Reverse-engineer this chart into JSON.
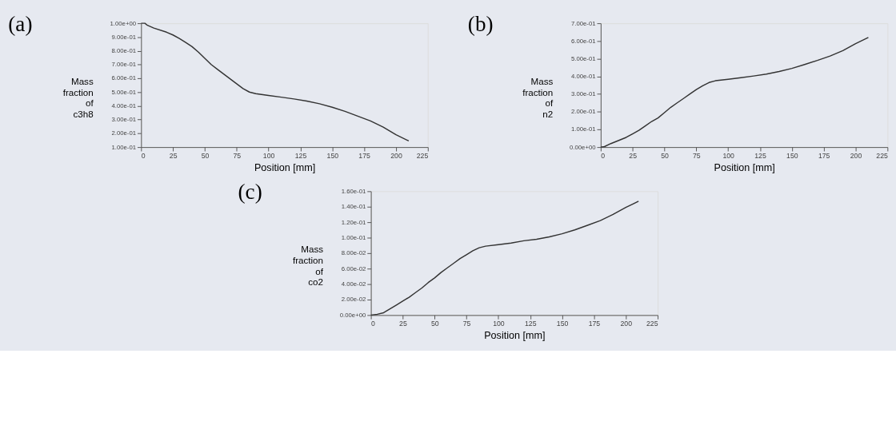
{
  "chart_data": [
    {
      "type": "line",
      "title": "(a)",
      "xlabel": "Position [mm]",
      "ylabel": "Mass fraction of c3h8",
      "grid": false,
      "marker": "none",
      "line_style": "solid",
      "x": [
        0,
        3,
        5,
        10,
        20,
        25,
        30,
        35,
        40,
        45,
        50,
        55,
        60,
        65,
        70,
        75,
        80,
        85,
        90,
        100,
        110,
        120,
        130,
        140,
        150,
        160,
        170,
        180,
        190,
        200,
        210
      ],
      "series": [
        {
          "color": "#333333",
          "values": [
            1.0,
            1.0,
            0.985,
            0.965,
            0.935,
            0.915,
            0.89,
            0.86,
            0.83,
            0.79,
            0.745,
            0.7,
            0.665,
            0.63,
            0.595,
            0.56,
            0.525,
            0.5,
            0.488,
            0.475,
            0.463,
            0.45,
            0.435,
            0.415,
            0.39,
            0.36,
            0.325,
            0.29,
            0.245,
            0.19,
            0.145
          ]
        }
      ],
      "xlim": [
        0,
        225
      ],
      "xticks": [
        0,
        25,
        50,
        75,
        100,
        125,
        150,
        175,
        200,
        225
      ],
      "ylim": [
        0.1,
        1.0
      ],
      "yticks": [
        {
          "value": 0.1,
          "label": "1.00e-01"
        },
        {
          "value": 0.2,
          "label": "2.00e-01"
        },
        {
          "value": 0.3,
          "label": "3.00e-01"
        },
        {
          "value": 0.4,
          "label": "4.00e-01"
        },
        {
          "value": 0.5,
          "label": "5.00e-01"
        },
        {
          "value": 0.6,
          "label": "6.00e-01"
        },
        {
          "value": 0.7,
          "label": "7.00e-01"
        },
        {
          "value": 0.8,
          "label": "8.00e-01"
        },
        {
          "value": 0.9,
          "label": "9.00e-01"
        },
        {
          "value": 1.0,
          "label": "1.00e+00"
        }
      ]
    },
    {
      "type": "line",
      "title": "(b)",
      "xlabel": "Position [mm]",
      "ylabel": "Mass fraction of n2",
      "grid": false,
      "marker": "none",
      "line_style": "solid",
      "x": [
        0,
        3,
        8,
        15,
        20,
        25,
        30,
        35,
        40,
        45,
        50,
        55,
        60,
        65,
        70,
        75,
        80,
        85,
        90,
        100,
        110,
        120,
        130,
        140,
        150,
        160,
        170,
        180,
        190,
        200,
        210
      ],
      "series": [
        {
          "color": "#333333",
          "values": [
            0,
            0.003,
            0.02,
            0.04,
            0.055,
            0.075,
            0.095,
            0.12,
            0.145,
            0.165,
            0.195,
            0.225,
            0.25,
            0.275,
            0.3,
            0.325,
            0.347,
            0.365,
            0.375,
            0.383,
            0.392,
            0.402,
            0.413,
            0.427,
            0.445,
            0.467,
            0.49,
            0.515,
            0.545,
            0.585,
            0.62
          ]
        }
      ],
      "xlim": [
        0,
        225
      ],
      "xticks": [
        0,
        25,
        50,
        75,
        100,
        125,
        150,
        175,
        200,
        225
      ],
      "ylim": [
        0,
        0.7
      ],
      "yticks": [
        {
          "value": 0,
          "label": "0.00e+00"
        },
        {
          "value": 0.1,
          "label": "1.00e-01"
        },
        {
          "value": 0.2,
          "label": "2.00e-01"
        },
        {
          "value": 0.3,
          "label": "3.00e-01"
        },
        {
          "value": 0.4,
          "label": "4.00e-01"
        },
        {
          "value": 0.5,
          "label": "5.00e-01"
        },
        {
          "value": 0.6,
          "label": "6.00e-01"
        },
        {
          "value": 0.7,
          "label": "7.00e-01"
        }
      ]
    },
    {
      "type": "line",
      "title": "(c)",
      "xlabel": "Position [mm]",
      "ylabel": "Mass fraction of co2",
      "grid": false,
      "marker": "none",
      "line_style": "solid",
      "x": [
        0,
        5,
        10,
        15,
        20,
        25,
        30,
        35,
        40,
        45,
        50,
        55,
        60,
        65,
        70,
        75,
        80,
        85,
        90,
        100,
        110,
        120,
        130,
        140,
        150,
        160,
        170,
        180,
        190,
        200,
        210
      ],
      "series": [
        {
          "color": "#333333",
          "values": [
            0,
            0.001,
            0.003,
            0.008,
            0.013,
            0.018,
            0.023,
            0.029,
            0.035,
            0.042,
            0.048,
            0.055,
            0.061,
            0.067,
            0.073,
            0.078,
            0.083,
            0.087,
            0.089,
            0.091,
            0.093,
            0.096,
            0.098,
            0.101,
            0.105,
            0.11,
            0.116,
            0.122,
            0.13,
            0.139,
            0.147
          ]
        }
      ],
      "xlim": [
        0,
        225
      ],
      "xticks": [
        0,
        25,
        50,
        75,
        100,
        125,
        150,
        175,
        200,
        225
      ],
      "ylim": [
        0,
        0.16
      ],
      "yticks": [
        {
          "value": 0,
          "label": "0.00e+00"
        },
        {
          "value": 0.02,
          "label": "2.00e-02"
        },
        {
          "value": 0.04,
          "label": "4.00e-02"
        },
        {
          "value": 0.06,
          "label": "6.00e-02"
        },
        {
          "value": 0.08,
          "label": "8.00e-02"
        },
        {
          "value": 0.1,
          "label": "1.00e-01"
        },
        {
          "value": 0.12,
          "label": "1.20e-01"
        },
        {
          "value": 0.14,
          "label": "1.40e-01"
        },
        {
          "value": 0.16,
          "label": "1.60e-01"
        }
      ]
    }
  ]
}
